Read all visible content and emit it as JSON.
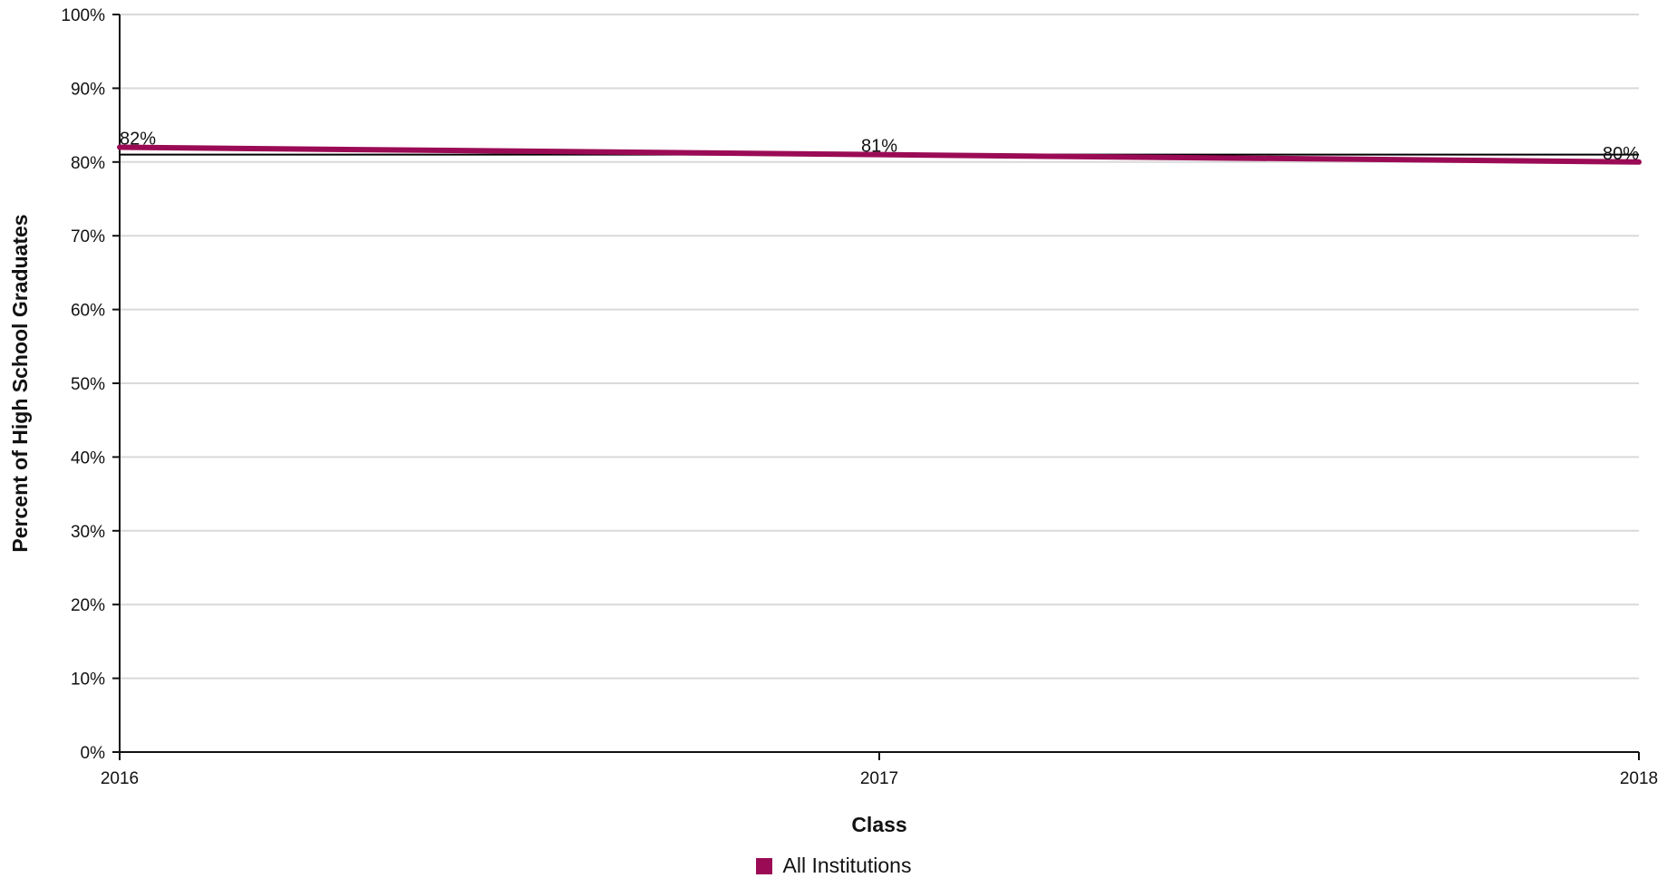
{
  "chart_data": {
    "type": "line",
    "categories": [
      "2016",
      "2017",
      "2018"
    ],
    "series": [
      {
        "name": "All Institutions",
        "values": [
          82,
          81,
          80
        ],
        "labels": [
          "82%",
          "81%",
          "80%"
        ],
        "color": "#9b0b55"
      }
    ],
    "reference_line": {
      "value": 81,
      "color": "#000000"
    },
    "xlabel": "Class",
    "ylabel": "Percent of High School Graduates",
    "ylim": [
      0,
      100
    ],
    "yticks": [
      0,
      10,
      20,
      30,
      40,
      50,
      60,
      70,
      80,
      90,
      100
    ],
    "ytick_labels": [
      "0%",
      "10%",
      "20%",
      "30%",
      "40%",
      "50%",
      "60%",
      "70%",
      "80%",
      "90%",
      "100%"
    ],
    "grid": true,
    "legend_position": "bottom-center"
  }
}
